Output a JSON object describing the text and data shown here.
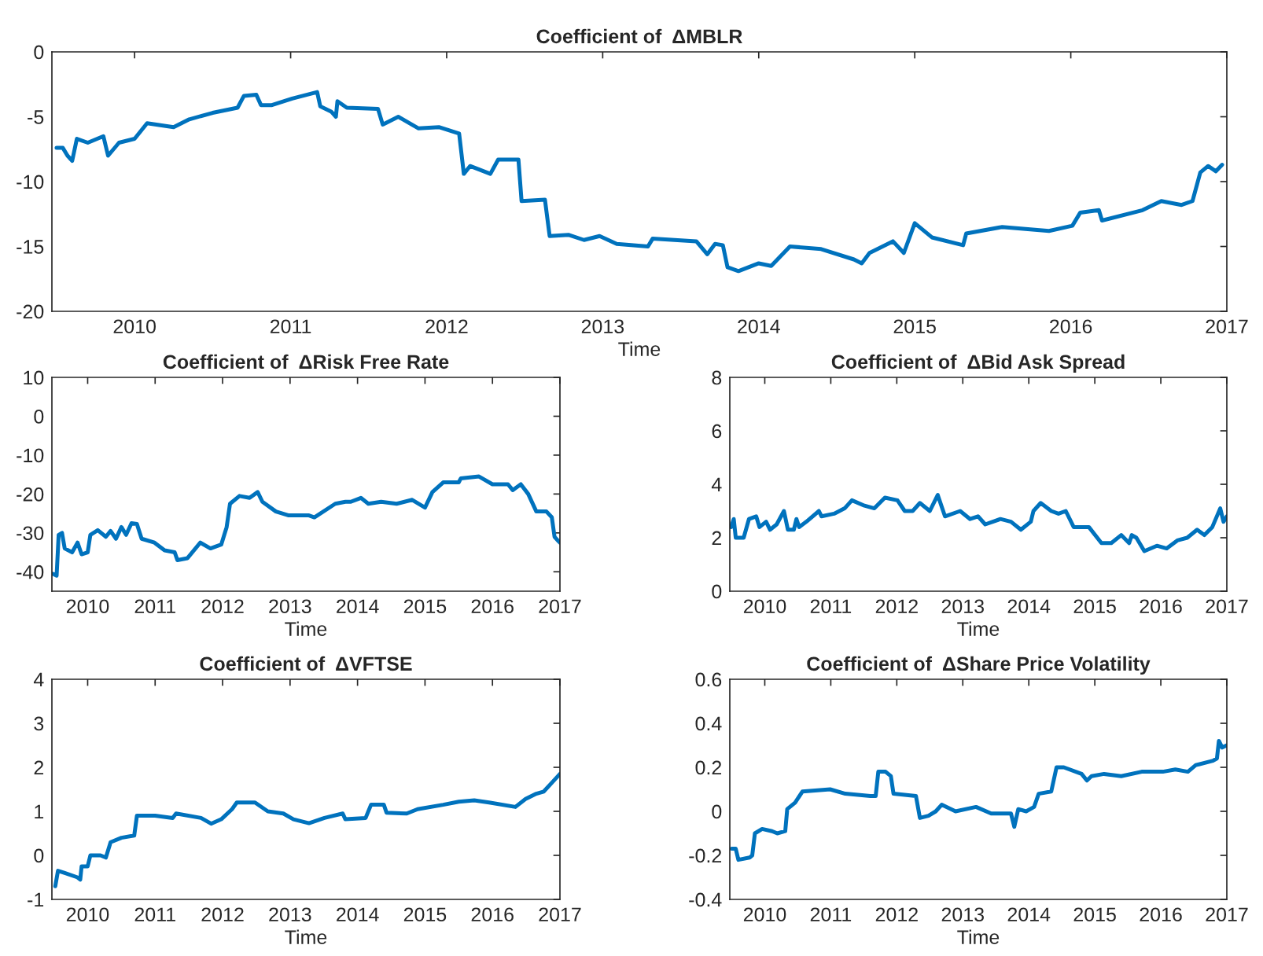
{
  "chart_data": [
    {
      "type": "line",
      "title": "Coefficient of  ΔMBLR",
      "xlabel": "Time",
      "xlim": [
        2009.47,
        2017
      ],
      "xticks": [
        2010,
        2011,
        2012,
        2013,
        2014,
        2015,
        2016,
        2017
      ],
      "ylim": [
        -20,
        0
      ],
      "yticks": [
        -20,
        -15,
        -10,
        -5,
        0
      ],
      "x": [
        2009.5,
        2009.54,
        2009.57,
        2009.6,
        2009.63,
        2009.7,
        2009.8,
        2009.83,
        2009.9,
        2010.0,
        2010.08,
        2010.25,
        2010.35,
        2010.5,
        2010.66,
        2010.7,
        2010.78,
        2010.81,
        2010.88,
        2011.01,
        2011.17,
        2011.19,
        2011.26,
        2011.29,
        2011.3,
        2011.36,
        2011.56,
        2011.59,
        2011.69,
        2011.82,
        2011.95,
        2012.08,
        2012.11,
        2012.15,
        2012.28,
        2012.33,
        2012.46,
        2012.48,
        2012.63,
        2012.66,
        2012.78,
        2012.88,
        2012.98,
        2013.09,
        2013.29,
        2013.32,
        2013.6,
        2013.67,
        2013.72,
        2013.77,
        2013.8,
        2013.87,
        2014.0,
        2014.08,
        2014.2,
        2014.4,
        2014.61,
        2014.66,
        2014.71,
        2014.86,
        2014.93,
        2015.0,
        2015.11,
        2015.31,
        2015.33,
        2015.56,
        2015.86,
        2016.01,
        2016.06,
        2016.18,
        2016.2,
        2016.46,
        2016.58,
        2016.71,
        2016.78,
        2016.83,
        2016.88,
        2016.93,
        2016.97
      ],
      "series": [
        {
          "color": "#0072bd",
          "values": [
            -7.4,
            -7.4,
            -8.0,
            -8.4,
            -6.7,
            -7.0,
            -6.5,
            -8.0,
            -7.0,
            -6.7,
            -5.5,
            -5.8,
            -5.2,
            -4.7,
            -4.3,
            -3.4,
            -3.3,
            -4.1,
            -4.1,
            -3.6,
            -3.1,
            -4.2,
            -4.6,
            -5.0,
            -3.8,
            -4.3,
            -4.4,
            -5.6,
            -5.0,
            -5.9,
            -5.8,
            -6.3,
            -9.4,
            -8.8,
            -9.4,
            -8.3,
            -8.3,
            -11.5,
            -11.4,
            -14.2,
            -14.1,
            -14.5,
            -14.2,
            -14.8,
            -15.0,
            -14.4,
            -14.6,
            -15.6,
            -14.8,
            -14.9,
            -16.6,
            -16.9,
            -16.3,
            -16.5,
            -15.0,
            -15.2,
            -16.0,
            -16.3,
            -15.5,
            -14.6,
            -15.5,
            -13.2,
            -14.3,
            -14.9,
            -14.0,
            -13.5,
            -13.8,
            -13.4,
            -12.4,
            -12.2,
            -13.0,
            -12.2,
            -11.5,
            -11.8,
            -11.5,
            -9.3,
            -8.8,
            -9.2,
            -8.7
          ]
        }
      ]
    },
    {
      "type": "line",
      "title": "Coefficient of  ΔRisk Free Rate",
      "xlabel": "Time",
      "xlim": [
        2009.47,
        2017
      ],
      "xticks": [
        2010,
        2011,
        2012,
        2013,
        2014,
        2015,
        2016,
        2017
      ],
      "ylim": [
        -45,
        10
      ],
      "yticks": [
        -40,
        -30,
        -20,
        -10,
        0,
        10
      ],
      "x": [
        2009.48,
        2009.54,
        2009.57,
        2009.62,
        2009.66,
        2009.77,
        2009.85,
        2009.91,
        2010.0,
        2010.04,
        2010.15,
        2010.27,
        2010.34,
        2010.42,
        2010.5,
        2010.57,
        2010.65,
        2010.73,
        2010.8,
        2010.99,
        2011.14,
        2011.29,
        2011.33,
        2011.48,
        2011.67,
        2011.82,
        2011.98,
        2012.06,
        2012.11,
        2012.25,
        2012.4,
        2012.52,
        2012.59,
        2012.79,
        2012.98,
        2013.28,
        2013.36,
        2013.67,
        2013.82,
        2013.9,
        2014.05,
        2014.16,
        2014.35,
        2014.58,
        2014.81,
        2015.0,
        2015.11,
        2015.27,
        2015.5,
        2015.53,
        2015.8,
        2016.0,
        2016.23,
        2016.3,
        2016.42,
        2016.53,
        2016.65,
        2016.8,
        2016.88,
        2016.92,
        2016.97,
        2017.0
      ],
      "series": [
        {
          "color": "#0072bd",
          "values": [
            -40.5,
            -41,
            -30.5,
            -30,
            -34,
            -35,
            -32.5,
            -35.5,
            -35,
            -30.5,
            -29.3,
            -31,
            -29.5,
            -31.5,
            -28.5,
            -30.5,
            -27.5,
            -27.7,
            -31.5,
            -32.5,
            -34.5,
            -35,
            -37,
            -36.5,
            -32.5,
            -34,
            -33,
            -28.5,
            -22.5,
            -20.5,
            -21,
            -19.5,
            -22,
            -24.5,
            -25.5,
            -25.5,
            -26,
            -22.5,
            -22,
            -22,
            -21,
            -22.5,
            -22,
            -22.5,
            -21.5,
            -23.5,
            -19.5,
            -17,
            -17,
            -16,
            -15.5,
            -17.5,
            -17.5,
            -19,
            -17.5,
            -20,
            -24.5,
            -24.5,
            -26,
            -31,
            -32,
            -32.5
          ]
        }
      ]
    },
    {
      "type": "line",
      "title": "Coefficient of  ΔBid Ask Spread",
      "xlabel": "Time",
      "xlim": [
        2009.47,
        2017
      ],
      "xticks": [
        2010,
        2011,
        2012,
        2013,
        2014,
        2015,
        2016,
        2017
      ],
      "ylim": [
        0,
        8
      ],
      "yticks": [
        0,
        2,
        4,
        6,
        8
      ],
      "x": [
        2009.49,
        2009.53,
        2009.56,
        2009.68,
        2009.76,
        2009.87,
        2009.92,
        2010.02,
        2010.08,
        2010.18,
        2010.29,
        2010.35,
        2010.44,
        2010.48,
        2010.52,
        2010.63,
        2010.82,
        2010.86,
        2011.05,
        2011.21,
        2011.32,
        2011.51,
        2011.66,
        2011.82,
        2012.01,
        2012.12,
        2012.24,
        2012.35,
        2012.5,
        2012.62,
        2012.73,
        2012.96,
        2013.11,
        2013.23,
        2013.34,
        2013.57,
        2013.73,
        2013.88,
        2014.03,
        2014.07,
        2014.18,
        2014.34,
        2014.45,
        2014.56,
        2014.68,
        2014.91,
        2015.1,
        2015.25,
        2015.4,
        2015.52,
        2015.56,
        2015.63,
        2015.75,
        2015.94,
        2016.09,
        2016.25,
        2016.4,
        2016.55,
        2016.66,
        2016.78,
        2016.9,
        2016.95,
        2017.0
      ],
      "series": [
        {
          "color": "#0072bd",
          "values": [
            2.4,
            2.7,
            2.0,
            2.0,
            2.7,
            2.8,
            2.4,
            2.6,
            2.3,
            2.5,
            3.0,
            2.3,
            2.3,
            2.7,
            2.4,
            2.6,
            3.0,
            2.8,
            2.9,
            3.1,
            3.4,
            3.2,
            3.1,
            3.5,
            3.4,
            3.0,
            3.0,
            3.3,
            3.0,
            3.6,
            2.8,
            3.0,
            2.7,
            2.8,
            2.5,
            2.7,
            2.6,
            2.3,
            2.6,
            3.0,
            3.3,
            3.0,
            2.9,
            3.0,
            2.4,
            2.4,
            1.8,
            1.8,
            2.1,
            1.8,
            2.1,
            2.0,
            1.5,
            1.7,
            1.6,
            1.9,
            2.0,
            2.3,
            2.1,
            2.4,
            3.1,
            2.6,
            2.8
          ]
        }
      ]
    },
    {
      "type": "line",
      "title": "Coefficient of  ΔVFTSE",
      "xlabel": "Time",
      "xlim": [
        2009.47,
        2017
      ],
      "xticks": [
        2010,
        2011,
        2012,
        2013,
        2014,
        2015,
        2016,
        2017
      ],
      "ylim": [
        -1,
        4
      ],
      "yticks": [
        -1,
        0,
        1,
        2,
        3,
        4
      ],
      "x": [
        2009.52,
        2009.56,
        2009.66,
        2009.85,
        2009.89,
        2009.91,
        2010.0,
        2010.04,
        2010.19,
        2010.27,
        2010.34,
        2010.5,
        2010.69,
        2010.73,
        2011.0,
        2011.26,
        2011.31,
        2011.68,
        2011.83,
        2011.98,
        2012.14,
        2012.21,
        2012.48,
        2012.67,
        2012.9,
        2013.05,
        2013.28,
        2013.51,
        2013.78,
        2013.82,
        2014.12,
        2014.2,
        2014.39,
        2014.43,
        2014.73,
        2014.89,
        2015.27,
        2015.5,
        2015.73,
        2015.95,
        2016.34,
        2016.49,
        2016.65,
        2016.76,
        2016.88,
        2017.0
      ],
      "series": [
        {
          "color": "#0072bd",
          "values": [
            -0.7,
            -0.35,
            -0.4,
            -0.5,
            -0.55,
            -0.25,
            -0.25,
            0.0,
            0.0,
            -0.05,
            0.3,
            0.4,
            0.45,
            0.9,
            0.9,
            0.85,
            0.95,
            0.85,
            0.72,
            0.82,
            1.05,
            1.2,
            1.2,
            1.0,
            0.95,
            0.82,
            0.73,
            0.85,
            0.95,
            0.82,
            0.85,
            1.15,
            1.15,
            0.97,
            0.95,
            1.05,
            1.15,
            1.22,
            1.25,
            1.2,
            1.1,
            1.28,
            1.4,
            1.45,
            1.65,
            1.85
          ]
        }
      ]
    },
    {
      "type": "line",
      "title": "Coefficient of  ΔShare Price Volatility",
      "xlabel": "Time",
      "xlim": [
        2009.47,
        2017
      ],
      "xticks": [
        2010,
        2011,
        2012,
        2013,
        2014,
        2015,
        2016,
        2017
      ],
      "ylim": [
        -0.4,
        0.6
      ],
      "yticks": [
        -0.4,
        -0.2,
        0,
        0.2,
        0.4,
        0.6
      ],
      "x": [
        2009.5,
        2009.56,
        2009.6,
        2009.77,
        2009.81,
        2009.85,
        2009.96,
        2010.11,
        2010.19,
        2010.31,
        2010.34,
        2010.46,
        2010.57,
        2010.99,
        2011.22,
        2011.6,
        2011.68,
        2011.72,
        2011.83,
        2011.91,
        2011.95,
        2012.29,
        2012.35,
        2012.48,
        2012.59,
        2012.68,
        2012.89,
        2013.2,
        2013.43,
        2013.73,
        2013.78,
        2013.84,
        2013.96,
        2014.08,
        2014.15,
        2014.34,
        2014.42,
        2014.53,
        2014.8,
        2014.88,
        2014.95,
        2015.14,
        2015.4,
        2015.71,
        2016.03,
        2016.22,
        2016.41,
        2016.53,
        2016.79,
        2016.85,
        2016.88,
        2016.93,
        2017.0
      ],
      "series": [
        {
          "color": "#0072bd",
          "values": [
            -0.17,
            -0.17,
            -0.22,
            -0.21,
            -0.2,
            -0.1,
            -0.08,
            -0.09,
            -0.1,
            -0.09,
            0.01,
            0.04,
            0.09,
            0.1,
            0.08,
            0.07,
            0.07,
            0.18,
            0.18,
            0.16,
            0.08,
            0.07,
            -0.03,
            -0.02,
            0.0,
            0.03,
            0.0,
            0.02,
            -0.01,
            -0.01,
            -0.07,
            0.01,
            0.0,
            0.02,
            0.08,
            0.09,
            0.2,
            0.2,
            0.17,
            0.14,
            0.16,
            0.17,
            0.16,
            0.18,
            0.18,
            0.19,
            0.18,
            0.21,
            0.23,
            0.24,
            0.32,
            0.29,
            0.3
          ]
        }
      ]
    }
  ]
}
